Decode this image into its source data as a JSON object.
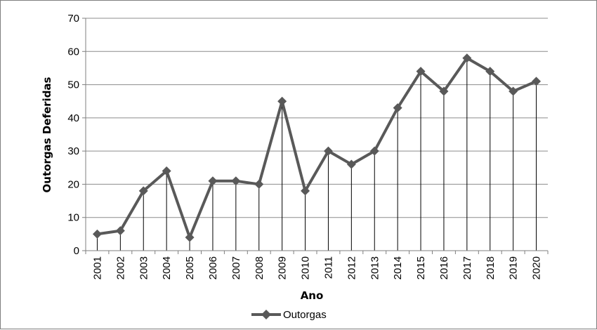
{
  "chart_data": {
    "type": "line",
    "xlabel": "Ano",
    "ylabel": "Outorgas Deferidas",
    "ylim": [
      0,
      70
    ],
    "yticks": [
      0,
      10,
      20,
      30,
      40,
      50,
      60,
      70
    ],
    "grid": "horizontal",
    "drop_lines": true,
    "legend": "bottom-center",
    "categories": [
      "2001",
      "2002",
      "2003",
      "2004",
      "2005",
      "2006",
      "2007",
      "2008",
      "2009",
      "2010",
      "2011",
      "2012",
      "2013",
      "2014",
      "2015",
      "2016",
      "2017",
      "2018",
      "2019",
      "2020"
    ],
    "series": [
      {
        "name": "Outorgas",
        "color": "#595959",
        "marker": "diamond",
        "values": [
          5,
          6,
          18,
          24,
          4,
          21,
          21,
          20,
          45,
          18,
          30,
          26,
          30,
          43,
          54,
          48,
          58,
          54,
          48,
          51
        ]
      }
    ]
  }
}
